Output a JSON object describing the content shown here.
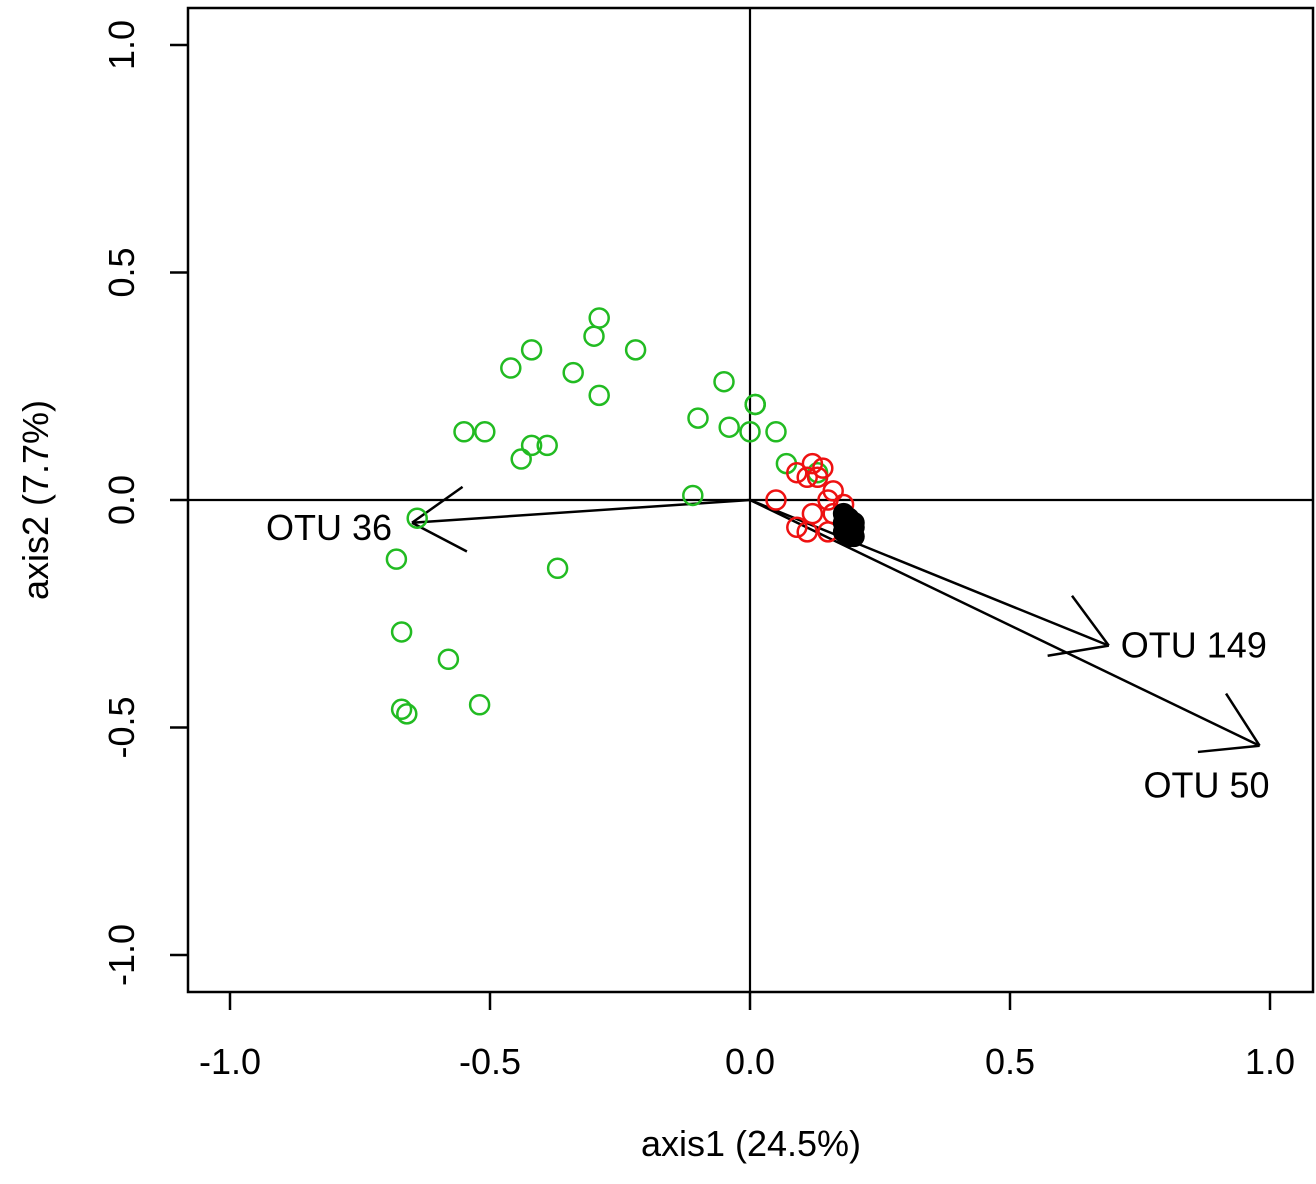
{
  "chart_data": {
    "type": "scatter",
    "title": "",
    "xlabel": "axis1 (24.5%)",
    "ylabel": "axis2 (7.7%)",
    "xlim": [
      -1.0,
      1.0
    ],
    "ylim": [
      -1.0,
      1.0
    ],
    "xticks": [
      -1.0,
      -0.5,
      0.0,
      0.5,
      1.0
    ],
    "yticks": [
      -1.0,
      -0.5,
      0.0,
      0.5,
      1.0
    ],
    "xtick_labels": [
      "-1.0",
      "-0.5",
      "0.0",
      "0.5",
      "1.0"
    ],
    "ytick_labels": [
      "-1.0",
      "-0.5",
      "0.0",
      "0.5",
      "1.0"
    ],
    "reference_lines": {
      "x": 0.0,
      "y": 0.0
    },
    "grid": false,
    "series": [
      {
        "color": "#22bb22",
        "marker": "open-circle",
        "points": [
          [
            -0.29,
            0.4
          ],
          [
            -0.3,
            0.36
          ],
          [
            -0.42,
            0.33
          ],
          [
            -0.22,
            0.33
          ],
          [
            -0.46,
            0.29
          ],
          [
            -0.34,
            0.28
          ],
          [
            -0.29,
            0.23
          ],
          [
            -0.05,
            0.26
          ],
          [
            0.01,
            0.21
          ],
          [
            0.01,
            0.21
          ],
          [
            -0.1,
            0.18
          ],
          [
            -0.04,
            0.16
          ],
          [
            0.0,
            0.15
          ],
          [
            0.05,
            0.15
          ],
          [
            -0.55,
            0.15
          ],
          [
            -0.51,
            0.15
          ],
          [
            -0.42,
            0.12
          ],
          [
            -0.39,
            0.12
          ],
          [
            -0.44,
            0.09
          ],
          [
            0.07,
            0.08
          ],
          [
            0.13,
            0.06
          ],
          [
            -0.11,
            0.01
          ],
          [
            -0.64,
            -0.04
          ],
          [
            -0.68,
            -0.13
          ],
          [
            -0.37,
            -0.15
          ],
          [
            -0.67,
            -0.29
          ],
          [
            -0.58,
            -0.35
          ],
          [
            -0.52,
            -0.45
          ],
          [
            -0.67,
            -0.46
          ],
          [
            -0.66,
            -0.47
          ]
        ]
      },
      {
        "color": "#ee1111",
        "marker": "open-circle",
        "points": [
          [
            0.12,
            0.08
          ],
          [
            0.14,
            0.07
          ],
          [
            0.09,
            0.06
          ],
          [
            0.11,
            0.05
          ],
          [
            0.13,
            0.05
          ],
          [
            0.16,
            0.02
          ],
          [
            0.05,
            0.0
          ],
          [
            0.15,
            0.0
          ],
          [
            0.18,
            -0.01
          ],
          [
            0.12,
            -0.03
          ],
          [
            0.16,
            -0.03
          ],
          [
            0.09,
            -0.06
          ],
          [
            0.11,
            -0.07
          ],
          [
            0.15,
            -0.07
          ]
        ]
      },
      {
        "color": "#000000",
        "marker": "filled-circle",
        "points": [
          [
            0.18,
            -0.03
          ],
          [
            0.19,
            -0.04
          ],
          [
            0.18,
            -0.05
          ],
          [
            0.19,
            -0.06
          ],
          [
            0.2,
            -0.06
          ],
          [
            0.19,
            -0.07
          ],
          [
            0.2,
            -0.08
          ],
          [
            0.19,
            -0.08
          ],
          [
            0.2,
            -0.05
          ],
          [
            0.18,
            -0.07
          ]
        ]
      }
    ],
    "arrows": [
      {
        "label": "OTU 36",
        "x": -0.65,
        "y": -0.05,
        "label_side": "left"
      },
      {
        "label": "OTU 149",
        "x": 0.69,
        "y": -0.32,
        "label_side": "right"
      },
      {
        "label": "OTU 50",
        "x": 0.98,
        "y": -0.54,
        "label_side": "below"
      }
    ]
  }
}
